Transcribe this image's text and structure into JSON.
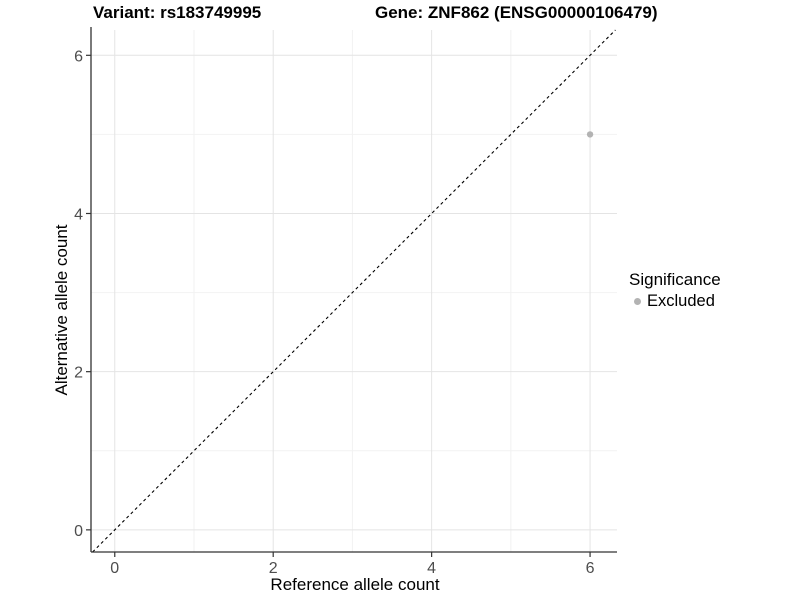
{
  "header": {
    "title_left": "Variant: rs183749995",
    "title_right": "Gene: ZNF862 (ENSG00000106479)"
  },
  "chart_data": {
    "type": "scatter",
    "titles": {
      "left": "Variant: rs183749995",
      "right": "Gene: ZNF862 (ENSG00000106479)"
    },
    "xlabel": "Reference allele count",
    "ylabel": "Alternative allele count",
    "xlim": [
      -0.3,
      6.34
    ],
    "ylim": [
      -0.28,
      6.32
    ],
    "x_ticks": [
      0,
      2,
      4,
      6
    ],
    "y_ticks": [
      0,
      2,
      4,
      6
    ],
    "x_minor_ticks": [
      1,
      3,
      5
    ],
    "y_minor_ticks": [
      1,
      3,
      5
    ],
    "grid": true,
    "reference_line": {
      "type": "abline",
      "slope": 1,
      "intercept": 0,
      "linetype": "dashed",
      "color": "#000000"
    },
    "series": [
      {
        "name": "Excluded",
        "color": "#b3b3b3",
        "points": [
          {
            "x": 6,
            "y": 5
          }
        ]
      }
    ],
    "legend": {
      "title": "Significance",
      "position": "right",
      "items": [
        {
          "label": "Excluded",
          "color": "#b3b3b3",
          "marker": "circle-icon"
        }
      ]
    },
    "style": {
      "grid_major_color": "#e4e4e4",
      "grid_minor_color": "#f2f2f2",
      "axis_color": "#333333",
      "tick_label_color": "#4d4d4d"
    }
  }
}
